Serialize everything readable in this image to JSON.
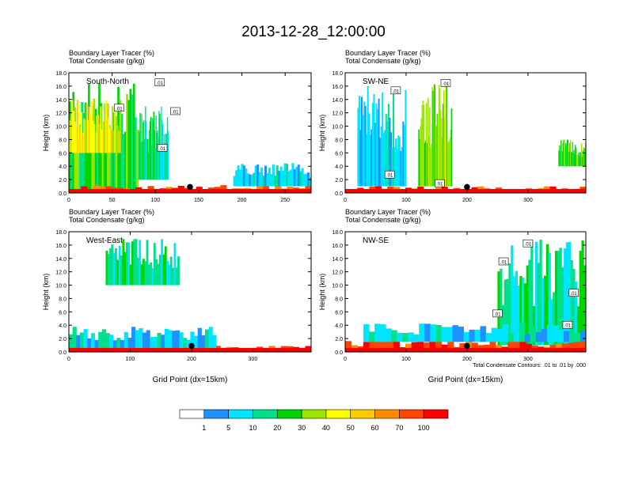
{
  "title": "2013-12-28_12:00:00",
  "colorbar": {
    "levels": [
      "1",
      "5",
      "10",
      "20",
      "30",
      "40",
      "50",
      "60",
      "70",
      "100"
    ],
    "colors": [
      "#ffffff",
      "#1e90ff",
      "#00e5ff",
      "#00e08a",
      "#00d400",
      "#9be600",
      "#ffff00",
      "#ffcc00",
      "#ff8c00",
      "#ff4500",
      "#ff0000"
    ]
  },
  "footnote": "Total Condensate Contours: .01 to .01 by .000",
  "chart_data": [
    {
      "type": "heatmap",
      "panel": "South-North",
      "subtitle_line1": "Boundary Layer Tracer    (%)",
      "subtitle_line2": "Total Condensate    (g/kg)",
      "ylabel": "Height (km)",
      "xlabel": "",
      "xlim": [
        0,
        280
      ],
      "ylim": [
        0,
        18
      ],
      "xticks": [
        "0",
        "50",
        "100",
        "150",
        "200",
        "250"
      ],
      "xtick_values": [
        0,
        50,
        100,
        150,
        200,
        250
      ],
      "yticks": [
        "0.0",
        "2.0",
        "4.0",
        "6.0",
        "8.0",
        "10.0",
        "12.0",
        "14.0",
        "16.0",
        "18.0"
      ],
      "contour_labels": [
        ".01",
        ".01",
        ".01",
        ".01"
      ],
      "contour_label_positions": [
        [
          105,
          16.5
        ],
        [
          58,
          12.7
        ],
        [
          123,
          12.2
        ],
        [
          108,
          6.7
        ]
      ],
      "marker_x": 140,
      "regions": [
        {
          "x0": 0,
          "x1": 80,
          "y0": 0.3,
          "y1": 16.5,
          "level": 4
        },
        {
          "x0": 0,
          "x1": 60,
          "y0": 6,
          "y1": 14,
          "level": 6
        },
        {
          "x0": 80,
          "x1": 115,
          "y0": 2,
          "y1": 13,
          "level": 3
        },
        {
          "x0": 0,
          "x1": 280,
          "y0": 0,
          "y1": 1.2,
          "level": 9
        },
        {
          "x0": 190,
          "x1": 280,
          "y0": 1,
          "y1": 4.5,
          "level": 2
        }
      ]
    },
    {
      "type": "heatmap",
      "panel": "SW-NE",
      "subtitle_line1": "Boundary Layer Tracer    (%)",
      "subtitle_line2": "Total Condensate    (g/kg)",
      "ylabel": "Height (km)",
      "xlabel": "",
      "xlim": [
        0,
        395
      ],
      "ylim": [
        0,
        18
      ],
      "xticks": [
        "0",
        "100",
        "200",
        "300"
      ],
      "xtick_values": [
        0,
        100,
        200,
        300
      ],
      "yticks": [
        "0.0",
        "2.0",
        "4.0",
        "6.0",
        "8.0",
        "10.0",
        "12.0",
        "14.0",
        "16.0",
        "18.0"
      ],
      "contour_labels": [
        ".01",
        ".01",
        ".01",
        ".01"
      ],
      "contour_label_positions": [
        [
          165,
          16.4
        ],
        [
          83,
          15.3
        ],
        [
          73,
          2.7
        ],
        [
          155,
          1.4
        ]
      ],
      "marker_x": 200,
      "regions": [
        {
          "x0": 20,
          "x1": 100,
          "y0": 1,
          "y1": 16,
          "level": 2
        },
        {
          "x0": 120,
          "x1": 175,
          "y0": 1,
          "y1": 17,
          "level": 5
        },
        {
          "x0": 350,
          "x1": 395,
          "y0": 4,
          "y1": 8,
          "level": 4
        },
        {
          "x0": 0,
          "x1": 395,
          "y0": 0,
          "y1": 1.0,
          "level": 9
        }
      ]
    },
    {
      "type": "heatmap",
      "panel": "West-East",
      "subtitle_line1": "Boundary Layer Tracer    (%)",
      "subtitle_line2": "Total Condensate    (g/kg)",
      "ylabel": "Height (km)",
      "xlabel": "Grid Point (dx=15km)",
      "xlim": [
        0,
        395
      ],
      "ylim": [
        0,
        18
      ],
      "xticks": [
        "0",
        "100",
        "200",
        "300"
      ],
      "xtick_values": [
        0,
        100,
        200,
        300
      ],
      "yticks": [
        "0.0",
        "2.0",
        "4.0",
        "6.0",
        "8.0",
        "10.0",
        "12.0",
        "14.0",
        "16.0",
        "18.0"
      ],
      "contour_labels": [],
      "contour_label_positions": [],
      "marker_x": 200,
      "regions": [
        {
          "x0": 60,
          "x1": 180,
          "y0": 10,
          "y1": 17,
          "level": 3
        },
        {
          "x0": 0,
          "x1": 395,
          "y0": 0,
          "y1": 1.0,
          "level": 9
        },
        {
          "x0": 0,
          "x1": 240,
          "y0": 0.5,
          "y1": 4,
          "level": 2
        }
      ]
    },
    {
      "type": "heatmap",
      "panel": "NW-SE",
      "subtitle_line1": "Boundary Layer Tracer    (%)",
      "subtitle_line2": "Total Condensate    (g/kg)",
      "ylabel": "Height (km)",
      "xlabel": "Grid Point (dx=15km)",
      "xlim": [
        0,
        395
      ],
      "ylim": [
        0,
        18
      ],
      "xticks": [
        "0",
        "100",
        "200",
        "300"
      ],
      "xtick_values": [
        0,
        100,
        200,
        300
      ],
      "yticks": [
        "0.0",
        "2.0",
        "4.0",
        "6.0",
        "8.0",
        "10.0",
        "12.0",
        "14.0",
        "16.0",
        "18.0"
      ],
      "contour_labels": [
        ".01",
        ".01",
        ".01",
        ".01",
        ".01"
      ],
      "contour_label_positions": [
        [
          300,
          16.2
        ],
        [
          260,
          13.5
        ],
        [
          250,
          5.7
        ],
        [
          375,
          8.8
        ],
        [
          365,
          4.0
        ]
      ],
      "marker_x": 200,
      "regions": [
        {
          "x0": 250,
          "x1": 395,
          "y0": 1,
          "y1": 17,
          "level": 3
        },
        {
          "x0": 0,
          "x1": 395,
          "y0": 0,
          "y1": 2,
          "level": 9
        },
        {
          "x0": 30,
          "x1": 395,
          "y0": 1.5,
          "y1": 4.5,
          "level": 2
        }
      ]
    }
  ]
}
